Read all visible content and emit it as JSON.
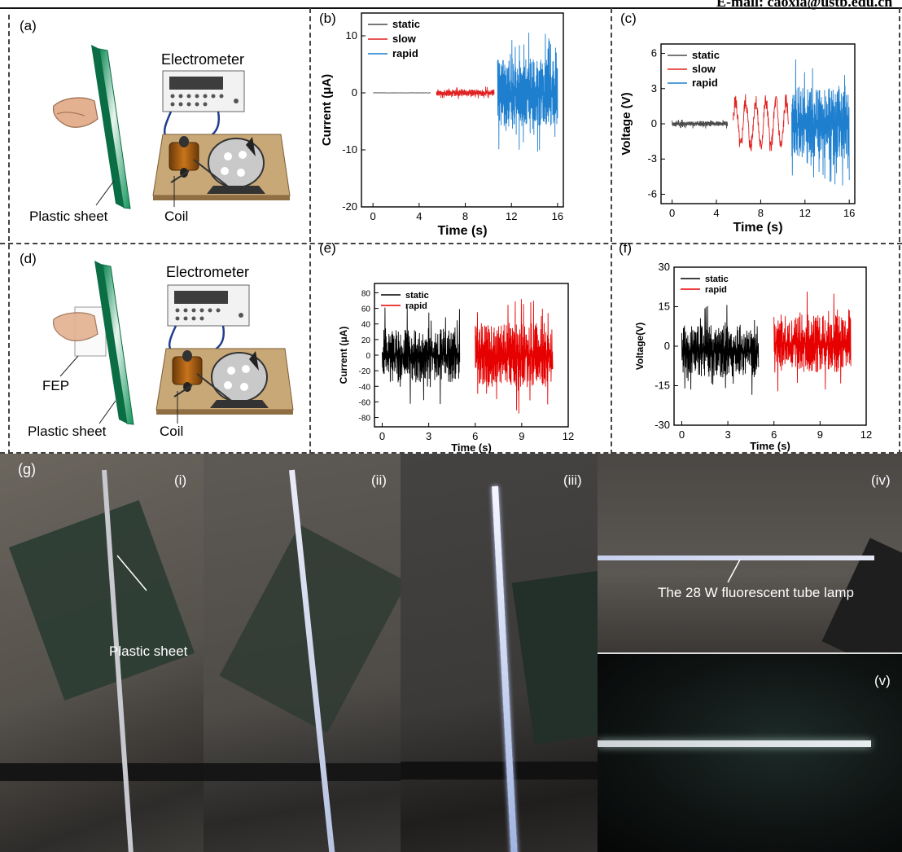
{
  "header": {
    "email": "E-mail: caoxia@ustb.edu.cn"
  },
  "panels": {
    "a": {
      "label": "(a)",
      "device": "Electrometer",
      "sheet": "Plastic sheet",
      "coil": "Coil"
    },
    "d": {
      "label": "(d)",
      "device": "Electrometer",
      "sheet": "Plastic sheet",
      "coil": "Coil",
      "film": "FEP"
    },
    "g": {
      "label": "(g)",
      "sub": [
        "(i)",
        "(ii)",
        "(iii)",
        "(iv)",
        "(v)"
      ],
      "sheet_callout": "Plastic sheet",
      "lamp_callout": "The 28 W fluorescent tube lamp"
    }
  },
  "chart_data": [
    {
      "id": "b",
      "panel_label": "(b)",
      "type": "line",
      "xlabel": "Time (s)",
      "ylabel": "Current (μA)",
      "xlim": [
        -1,
        16.5
      ],
      "ylim": [
        -20,
        14
      ],
      "xticks": [
        0,
        4,
        8,
        12,
        16
      ],
      "yticks": [
        -20,
        -10,
        0,
        10
      ],
      "legend": "top-left",
      "series": [
        {
          "name": "static",
          "color": "#4a4a4a",
          "x_range": [
            0,
            5
          ],
          "center": 0,
          "amp": 0.05,
          "n": 60,
          "seed": 1
        },
        {
          "name": "slow",
          "color": "#e02020",
          "x_range": [
            5.5,
            10.5
          ],
          "center": 0,
          "amp": 1.1,
          "n": 240,
          "seed": 2
        },
        {
          "name": "rapid",
          "color": "#1f7fcf",
          "x_range": [
            10.8,
            16
          ],
          "center": 0,
          "amp": 11,
          "n": 320,
          "seed": 3,
          "min": -16,
          "max": 11.5
        }
      ]
    },
    {
      "id": "c",
      "panel_label": "(c)",
      "type": "line",
      "xlabel": "Time (s)",
      "ylabel": "Voltage (V)",
      "xlim": [
        -1,
        16.5
      ],
      "ylim": [
        -6.8,
        6.8
      ],
      "xticks": [
        0,
        4,
        8,
        12,
        16
      ],
      "yticks": [
        -6,
        -3,
        0,
        3,
        6
      ],
      "legend": "top-left",
      "series": [
        {
          "name": "static",
          "color": "#4a4a4a",
          "x_range": [
            0,
            5
          ],
          "center": 0,
          "amp": 0.4,
          "n": 260,
          "seed": 4
        },
        {
          "name": "slow",
          "color": "#e02020",
          "x_range": [
            5.5,
            10.5
          ],
          "center": 0,
          "amp": 2.6,
          "n": 240,
          "seed": 5,
          "wave": 0.8
        },
        {
          "name": "rapid",
          "color": "#1f7fcf",
          "x_range": [
            10.8,
            16
          ],
          "center": 0,
          "amp": 5.6,
          "n": 260,
          "seed": 6
        }
      ]
    },
    {
      "id": "e",
      "panel_label": "(e)",
      "type": "line",
      "xlabel": "Time (s)",
      "ylabel": "Current (μA)",
      "xlim": [
        -0.5,
        12
      ],
      "ylim": [
        -92,
        92
      ],
      "xticks": [
        0,
        3,
        6,
        9,
        12
      ],
      "yticks": [
        -80,
        -60,
        -40,
        -20,
        0,
        20,
        40,
        60,
        80
      ],
      "legend": "top-left",
      "series": [
        {
          "name": "static",
          "color": "#000000",
          "x_range": [
            0,
            5
          ],
          "center": 0,
          "amp": 65,
          "n": 280,
          "seed": 7
        },
        {
          "name": "rapid",
          "color": "#e60000",
          "x_range": [
            6,
            11
          ],
          "center": 0,
          "amp": 75,
          "n": 280,
          "seed": 8
        }
      ]
    },
    {
      "id": "f",
      "panel_label": "(f)",
      "type": "line",
      "xlabel": "Time (s)",
      "ylabel": "Voltage(V)",
      "xlim": [
        -0.5,
        12
      ],
      "ylim": [
        -30,
        30
      ],
      "xticks": [
        0,
        3,
        6,
        9,
        12
      ],
      "yticks": [
        -30,
        -15,
        0,
        15,
        30
      ],
      "legend": "top-left",
      "series": [
        {
          "name": "static",
          "color": "#000000",
          "x_range": [
            0,
            5
          ],
          "center": -2,
          "amp": 18,
          "n": 280,
          "seed": 9
        },
        {
          "name": "rapid",
          "color": "#e60000",
          "x_range": [
            6,
            11
          ],
          "center": 1,
          "amp": 20,
          "n": 260,
          "seed": 10
        }
      ]
    }
  ]
}
